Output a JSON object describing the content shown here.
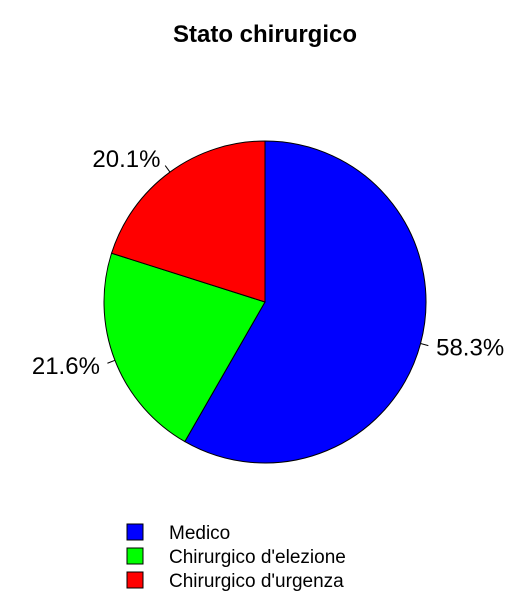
{
  "chart_data": {
    "type": "pie",
    "title": "Stato chirurgico",
    "categories": [
      "Medico",
      "Chirurgico d'elezione",
      "Chirurgico d'urgenza"
    ],
    "values": [
      58.3,
      21.6,
      20.1
    ],
    "value_labels": [
      "58.3%",
      "21.6%",
      "20.1%"
    ],
    "colors": [
      "#0000ff",
      "#00ff00",
      "#ff0000"
    ],
    "direction": "clockwise",
    "start": "12 o'clock",
    "legend_placement": "bottom-center"
  }
}
